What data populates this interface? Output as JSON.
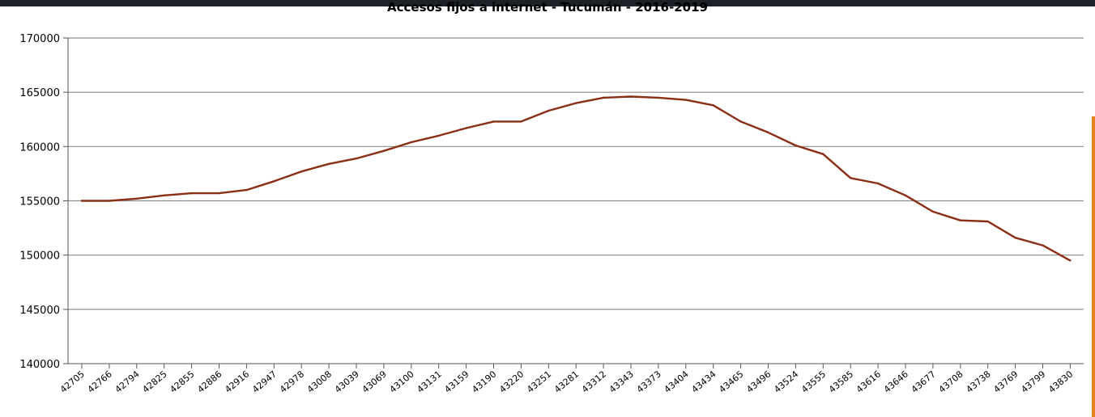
{
  "chart_data": {
    "type": "line",
    "title": "Accesos fijos a internet - Tucumán  - 2016-2019",
    "xlabel": "",
    "ylabel": "",
    "ylim": [
      140000,
      170000
    ],
    "yticks": [
      140000,
      145000,
      150000,
      155000,
      160000,
      165000,
      170000
    ],
    "grid": "horizontal",
    "legend": "none",
    "x": [
      42705,
      42766,
      42794,
      42825,
      42855,
      42886,
      42916,
      42947,
      42978,
      43008,
      43039,
      43069,
      43100,
      43131,
      43159,
      43190,
      43220,
      43251,
      43281,
      43312,
      43343,
      43373,
      43404,
      43434,
      43465,
      43496,
      43524,
      43555,
      43585,
      43616,
      43646,
      43677,
      43708,
      43738,
      43769,
      43799,
      43830
    ],
    "series": [
      {
        "values": [
          155000,
          155000,
          155200,
          155500,
          155700,
          155700,
          156000,
          156800,
          157700,
          158400,
          158900,
          159600,
          160400,
          161000,
          161700,
          162300,
          162300,
          163300,
          164000,
          164500,
          164600,
          164500,
          164300,
          163800,
          162300,
          161300,
          160100,
          159300,
          157100,
          156600,
          155500,
          154000,
          153200,
          153100,
          151600,
          150900,
          149500
        ],
        "color": "#8b2e16"
      }
    ]
  }
}
